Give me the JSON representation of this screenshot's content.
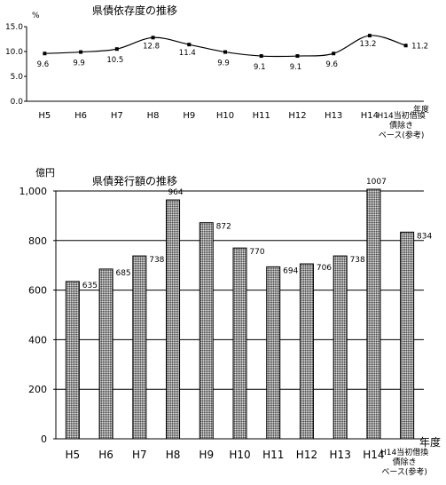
{
  "chart_data": [
    {
      "type": "line",
      "title": "県債依存度の推移",
      "unit_label": "%",
      "x_unit_label": "年度",
      "categories": [
        "H5",
        "H6",
        "H7",
        "H8",
        "H9",
        "H10",
        "H11",
        "H12",
        "H13",
        "H14",
        "H14当初借換債除きベース(参考)"
      ],
      "category_lines": [
        [
          "H5"
        ],
        [
          "H6"
        ],
        [
          "H7"
        ],
        [
          "H8"
        ],
        [
          "H9"
        ],
        [
          "H10"
        ],
        [
          "H11"
        ],
        [
          "H12"
        ],
        [
          "H13"
        ],
        [
          "H14"
        ],
        [
          "H14当初借換",
          "債除き",
          "ベース(参考)"
        ]
      ],
      "values": [
        9.6,
        9.9,
        10.5,
        12.8,
        11.4,
        9.9,
        9.1,
        9.1,
        9.6,
        13.2,
        11.2
      ],
      "value_labels": [
        "9.6",
        "9.9",
        "10.5",
        "12.8",
        "11.4",
        "9.9",
        "9.1",
        "9.1",
        "9.6",
        "13.2",
        "11.2"
      ],
      "ylim": [
        0,
        15
      ],
      "yticks": [
        0,
        5,
        10,
        15
      ],
      "ytick_labels": [
        "0.0",
        "5.0",
        "10.0",
        "15.0"
      ],
      "grid": false
    },
    {
      "type": "bar",
      "title": "県債発行額の推移",
      "unit_label": "億円",
      "x_unit_label": "年度",
      "categories": [
        "H5",
        "H6",
        "H7",
        "H8",
        "H9",
        "H10",
        "H11",
        "H12",
        "H13",
        "H14",
        "H14当初借換債除きベース(参考)"
      ],
      "category_lines": [
        [
          "H5"
        ],
        [
          "H6"
        ],
        [
          "H7"
        ],
        [
          "H8"
        ],
        [
          "H9"
        ],
        [
          "H10"
        ],
        [
          "H11"
        ],
        [
          "H12"
        ],
        [
          "H13"
        ],
        [
          "H14"
        ],
        [
          "H14当初借換",
          "債除き",
          "ベース(参考)"
        ]
      ],
      "values": [
        635,
        685,
        738,
        964,
        872,
        770,
        694,
        706,
        738,
        1007,
        834
      ],
      "value_labels": [
        "635",
        "685",
        "738",
        "964",
        "872",
        "770",
        "694",
        "706",
        "738",
        "1007",
        "834"
      ],
      "ylim": [
        0,
        1000
      ],
      "yticks": [
        0,
        200,
        400,
        600,
        800,
        1000
      ],
      "ytick_labels": [
        "0",
        "200",
        "400",
        "600",
        "800",
        "1,000"
      ],
      "grid": true,
      "bar_pattern": "hatched-gray"
    }
  ]
}
